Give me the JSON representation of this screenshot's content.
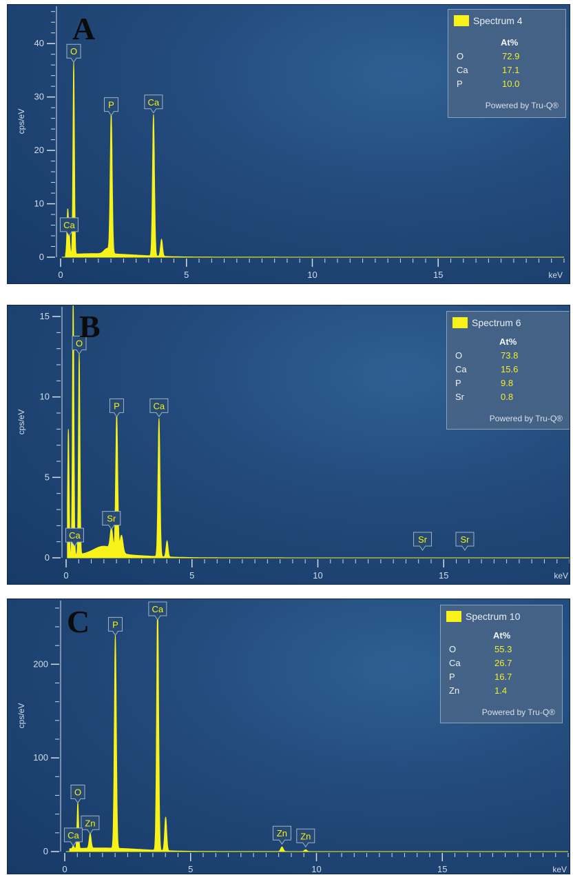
{
  "chart_data": [
    {
      "type": "line",
      "panel_letter": "A",
      "ylabel": "cps/eV",
      "xlabel": "keV",
      "xlim": [
        0,
        20
      ],
      "ylim": [
        0,
        47
      ],
      "x_ticks": [
        0,
        5,
        10,
        15
      ],
      "y_ticks": [
        0,
        10,
        20,
        30,
        40
      ],
      "peaks": [
        {
          "x": 0.28,
          "y": 8,
          "w": 0.03
        },
        {
          "x": 0.34,
          "y": 3.5,
          "w": 0.03
        },
        {
          "x": 0.52,
          "y": 36,
          "w": 0.03
        },
        {
          "x": 2.01,
          "y": 26,
          "w": 0.04
        },
        {
          "x": 3.69,
          "y": 26.5,
          "w": 0.04
        },
        {
          "x": 4.01,
          "y": 3.2,
          "w": 0.04
        },
        {
          "x": 1.85,
          "y": 1.0,
          "w": 0.12
        }
      ],
      "peak_labels": [
        {
          "text": "O",
          "x": 0.52,
          "y": 36
        },
        {
          "text": "P",
          "x": 2.01,
          "y": 26
        },
        {
          "text": "Ca",
          "x": 3.69,
          "y": 26.5
        },
        {
          "text": "Ca",
          "x": 0.34,
          "y": 3.5
        }
      ],
      "legend": {
        "title": "Spectrum 4",
        "header": "At%",
        "rows": [
          {
            "element": "O",
            "value": "72.9"
          },
          {
            "element": "Ca",
            "value": "17.1"
          },
          {
            "element": "P",
            "value": "10.0"
          }
        ],
        "footer": "Powered by Tru-Q®"
      }
    },
    {
      "type": "line",
      "panel_letter": "B",
      "ylabel": "cps/eV",
      "xlabel": "keV",
      "xlim": [
        0,
        20
      ],
      "ylim": [
        0,
        15.6
      ],
      "x_ticks": [
        0,
        5,
        10,
        15
      ],
      "y_ticks": [
        0,
        5,
        10,
        15
      ],
      "peaks": [
        {
          "x": 0.09,
          "y": 8,
          "w": 0.03
        },
        {
          "x": 0.28,
          "y": 16,
          "w": 0.03
        },
        {
          "x": 0.52,
          "y": 12.5,
          "w": 0.03
        },
        {
          "x": 1.8,
          "y": 1.3,
          "w": 0.05
        },
        {
          "x": 2.01,
          "y": 8.6,
          "w": 0.04
        },
        {
          "x": 2.2,
          "y": 1.1,
          "w": 0.06
        },
        {
          "x": 3.69,
          "y": 8.6,
          "w": 0.04
        },
        {
          "x": 4.01,
          "y": 1.0,
          "w": 0.04
        },
        {
          "x": 1.5,
          "y": 0.5,
          "w": 0.4
        }
      ],
      "peak_labels": [
        {
          "text": "O",
          "x": 0.52,
          "y": 12.5
        },
        {
          "text": "P",
          "x": 2.01,
          "y": 8.6
        },
        {
          "text": "Ca",
          "x": 3.69,
          "y": 8.6
        },
        {
          "text": "Sr",
          "x": 1.8,
          "y": 1.6
        },
        {
          "text": "Ca",
          "x": 0.34,
          "y": 0.55
        },
        {
          "text": "Sr",
          "x": 14.16,
          "y": 0.3
        },
        {
          "text": "Sr",
          "x": 15.84,
          "y": 0.3
        }
      ],
      "legend": {
        "title": "Spectrum 6",
        "header": "At%",
        "rows": [
          {
            "element": "O",
            "value": "73.8"
          },
          {
            "element": "Ca",
            "value": "15.6"
          },
          {
            "element": "P",
            "value": "9.8"
          },
          {
            "element": "Sr",
            "value": "0.8"
          }
        ],
        "footer": "Powered by Tru-Q®"
      }
    },
    {
      "type": "line",
      "panel_letter": "C",
      "ylabel": "cps/eV",
      "xlabel": "keV",
      "xlim": [
        0,
        20
      ],
      "ylim": [
        0,
        268
      ],
      "x_ticks": [
        0,
        5,
        10,
        15
      ],
      "y_ticks": [
        0,
        100,
        200
      ],
      "peaks": [
        {
          "x": 0.34,
          "y": 3,
          "w": 0.03
        },
        {
          "x": 0.52,
          "y": 49,
          "w": 0.03
        },
        {
          "x": 1.01,
          "y": 16,
          "w": 0.04
        },
        {
          "x": 2.01,
          "y": 228,
          "w": 0.04
        },
        {
          "x": 3.69,
          "y": 263,
          "w": 0.04
        },
        {
          "x": 4.01,
          "y": 36,
          "w": 0.04
        },
        {
          "x": 8.63,
          "y": 5,
          "w": 0.05
        },
        {
          "x": 9.57,
          "y": 2,
          "w": 0.05
        }
      ],
      "peak_labels": [
        {
          "text": "Ca",
          "x": 3.69,
          "y": 263
        },
        {
          "text": "P",
          "x": 2.01,
          "y": 228
        },
        {
          "text": "O",
          "x": 0.52,
          "y": 49
        },
        {
          "text": "Zn",
          "x": 1.01,
          "y": 16
        },
        {
          "text": "Ca",
          "x": 0.34,
          "y": 3
        },
        {
          "text": "Zn",
          "x": 8.63,
          "y": 5
        },
        {
          "text": "Zn",
          "x": 9.57,
          "y": 2
        }
      ],
      "legend": {
        "title": "Spectrum 10",
        "header": "At%",
        "rows": [
          {
            "element": "O",
            "value": "55.3"
          },
          {
            "element": "Ca",
            "value": "26.7"
          },
          {
            "element": "P",
            "value": "16.7"
          },
          {
            "element": "Zn",
            "value": "1.4"
          }
        ],
        "footer": "Powered by Tru-Q®"
      }
    }
  ]
}
